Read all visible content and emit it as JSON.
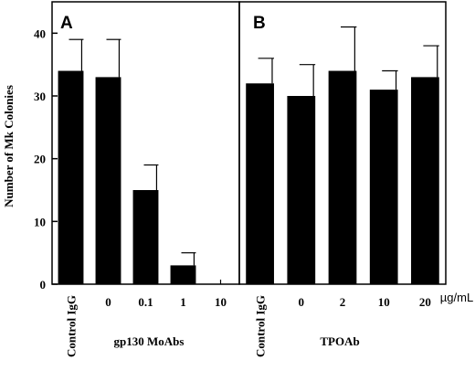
{
  "chart_data": [
    {
      "type": "bar",
      "panel": "A",
      "ylabel": "Number of Mk Colonies",
      "xlabel": "gp130 MoAbs",
      "ylim": [
        0,
        45
      ],
      "yticks": [
        0,
        10,
        20,
        30,
        40
      ],
      "categories": [
        "Control IgG",
        "0",
        "0.1",
        "1",
        "10"
      ],
      "values": [
        34,
        33,
        15,
        3,
        0
      ],
      "errors": [
        5,
        6,
        4,
        2,
        0
      ]
    },
    {
      "type": "bar",
      "panel": "B",
      "xlabel": "TPOAb",
      "unit": "µg/mL",
      "ylim": [
        0,
        45
      ],
      "categories": [
        "Control IgG",
        "0",
        "2",
        "10",
        "20"
      ],
      "values": [
        32,
        30,
        34,
        31,
        33
      ],
      "errors": [
        4,
        5,
        7,
        3,
        5
      ]
    }
  ],
  "colors": {
    "bar": "#000000",
    "background": "#ffffff"
  }
}
